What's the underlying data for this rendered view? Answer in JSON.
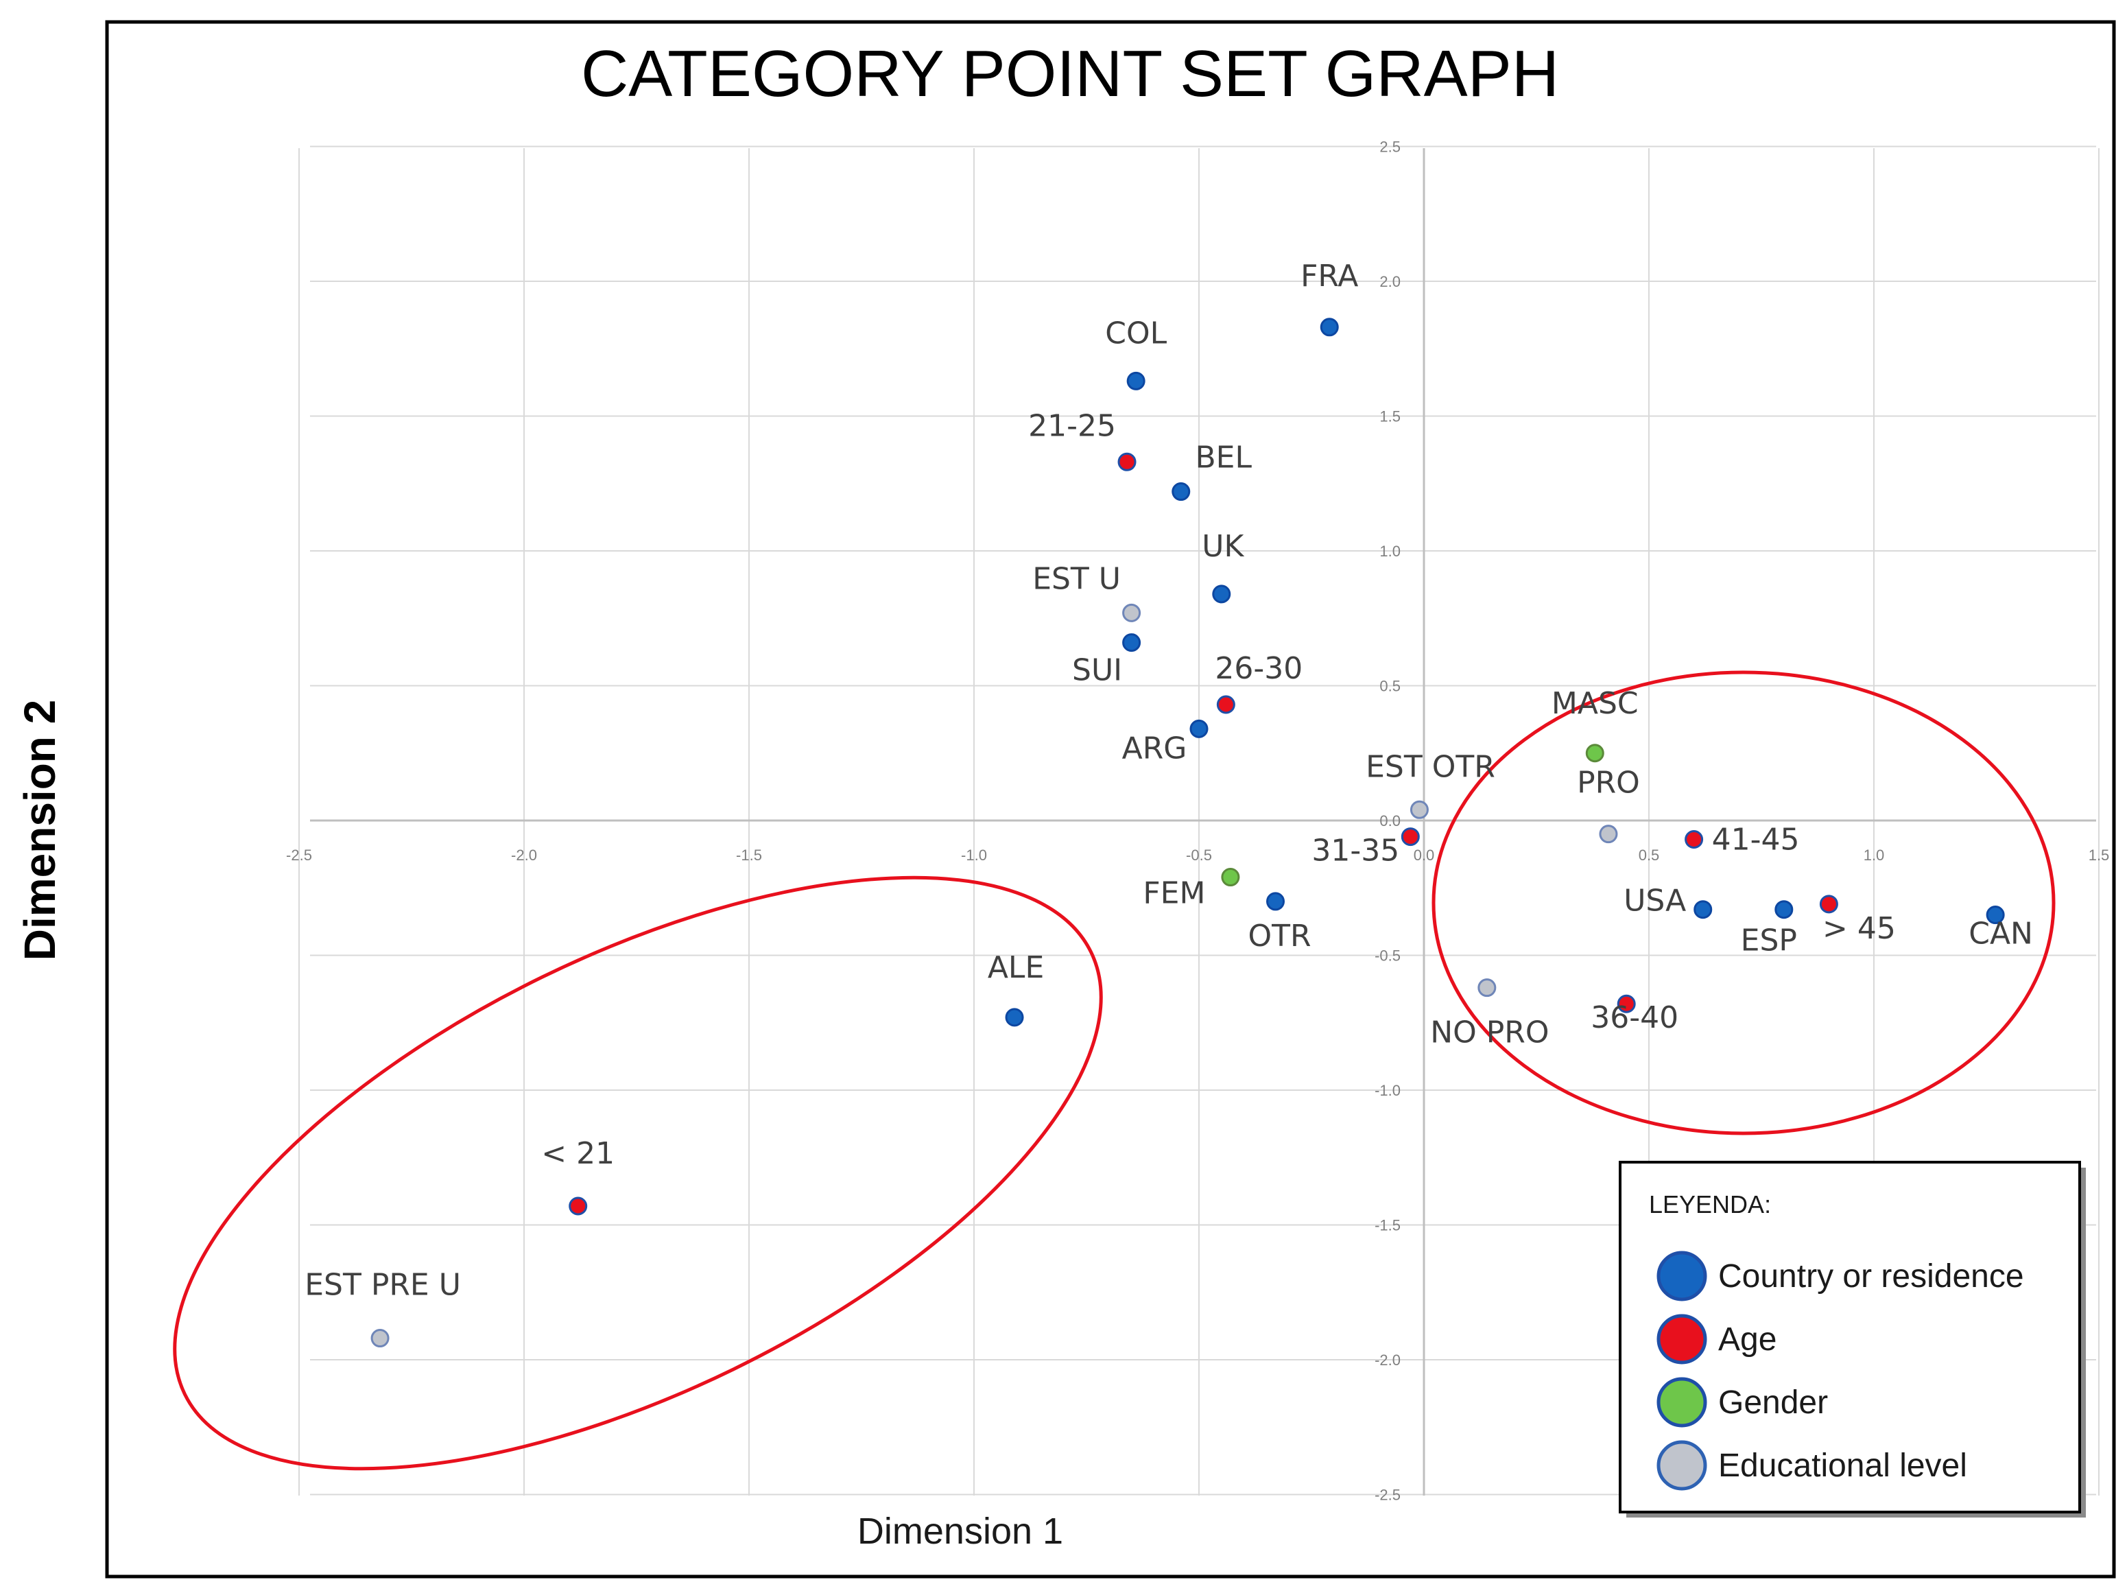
{
  "chart_data": {
    "type": "scatter",
    "title": "CATEGORY POINT SET GRAPH",
    "xlabel": "Dimension 1",
    "ylabel": "Dimension 2",
    "xlim": [
      -2.5,
      1.5
    ],
    "ylim": [
      -2.5,
      2.5
    ],
    "x_ticks": [
      "-2.5",
      "-2.0",
      "-1.5",
      "-1.0",
      "-0.5",
      "0.0",
      "0.5",
      "1.0",
      "1.5"
    ],
    "y_ticks": [
      "2.5",
      "2.0",
      "1.5",
      "1.0",
      "0.5",
      "0.0",
      "-0.5",
      "-1.0",
      "-1.5",
      "-2.0",
      "-2.5"
    ],
    "grid": true,
    "legend_position": "bottom-right",
    "legend": {
      "title": "LEYENDA:",
      "entries": [
        {
          "name": "Country or residence",
          "color": "#1565c0"
        },
        {
          "name": "Age",
          "color": "#e8101d"
        },
        {
          "name": "Gender",
          "color": "#6ec64a"
        },
        {
          "name": "Educational level",
          "color": "#c0c4cc"
        }
      ]
    },
    "series": [
      {
        "name": "Country or residence",
        "color": "#1565c0",
        "points": [
          {
            "label": "FRA",
            "x": -0.21,
            "y": 1.83
          },
          {
            "label": "COL",
            "x": -0.64,
            "y": 1.63
          },
          {
            "label": "BEL",
            "x": -0.54,
            "y": 1.22
          },
          {
            "label": "UK",
            "x": -0.45,
            "y": 0.84
          },
          {
            "label": "SUI",
            "x": -0.65,
            "y": 0.66
          },
          {
            "label": "ARG",
            "x": -0.5,
            "y": 0.34
          },
          {
            "label": "OTR",
            "x": -0.33,
            "y": -0.3
          },
          {
            "label": "ALE",
            "x": -0.91,
            "y": -0.73
          },
          {
            "label": "USA",
            "x": 0.62,
            "y": -0.33
          },
          {
            "label": "ESP",
            "x": 0.8,
            "y": -0.33
          },
          {
            "label": "CAN",
            "x": 1.27,
            "y": -0.35
          }
        ]
      },
      {
        "name": "Age",
        "color": "#e8101d",
        "points": [
          {
            "label": "21-25",
            "x": -0.66,
            "y": 1.33
          },
          {
            "label": "26-30",
            "x": -0.44,
            "y": 0.43
          },
          {
            "label": "31-35",
            "x": -0.03,
            "y": -0.06
          },
          {
            "label": "41-45",
            "x": 0.6,
            "y": -0.07
          },
          {
            "label": "> 45",
            "x": 0.9,
            "y": -0.31
          },
          {
            "label": "36-40",
            "x": 0.45,
            "y": -0.68
          },
          {
            "label": "< 21",
            "x": -1.88,
            "y": -1.43
          }
        ]
      },
      {
        "name": "Gender",
        "color": "#6ec64a",
        "points": [
          {
            "label": "MASC",
            "x": 0.38,
            "y": 0.25
          },
          {
            "label": "FEM",
            "x": -0.43,
            "y": -0.21
          }
        ]
      },
      {
        "name": "Educational level",
        "color": "#c0c4cc",
        "points": [
          {
            "label": "EST U",
            "x": -0.65,
            "y": 0.77
          },
          {
            "label": "EST OTR",
            "x": -0.01,
            "y": 0.04
          },
          {
            "label": "PRO",
            "x": 0.41,
            "y": -0.05
          },
          {
            "label": "NO PRO",
            "x": 0.14,
            "y": -0.62
          },
          {
            "label": "EST PRE U",
            "x": -2.32,
            "y": -1.92
          }
        ]
      }
    ]
  }
}
